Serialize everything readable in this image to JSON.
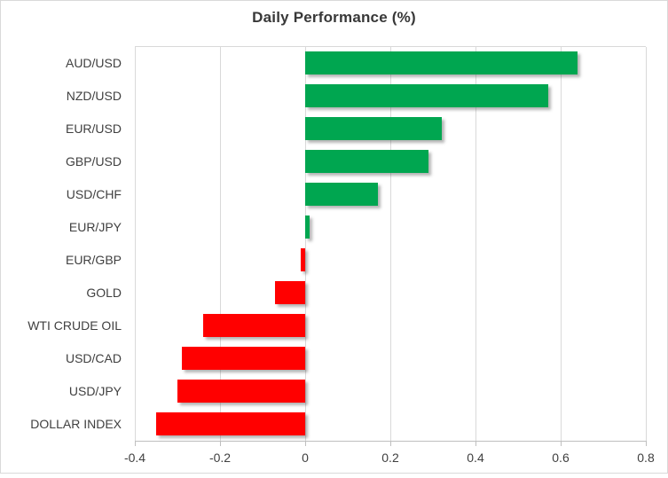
{
  "chart_data": {
    "type": "bar",
    "orientation": "horizontal",
    "title": "Daily Performance (%)",
    "categories": [
      "AUD/USD",
      "NZD/USD",
      "EUR/USD",
      "GBP/USD",
      "USD/CHF",
      "EUR/JPY",
      "EUR/GBP",
      "GOLD",
      "WTI CRUDE OIL",
      "USD/CAD",
      "USD/JPY",
      "DOLLAR INDEX"
    ],
    "values": [
      0.64,
      0.57,
      0.32,
      0.29,
      0.17,
      0.01,
      -0.01,
      -0.07,
      -0.24,
      -0.29,
      -0.3,
      -0.35
    ],
    "xlabel": "",
    "ylabel": "",
    "xlim": [
      -0.4,
      0.8
    ],
    "x_ticks": [
      -0.4,
      -0.2,
      0,
      0.2,
      0.4,
      0.6,
      0.8
    ],
    "x_tick_labels": [
      "-0.4",
      "-0.2",
      "0",
      "0.2",
      "0.4",
      "0.6",
      "0.8"
    ],
    "grid": "vertical-gridlines-on",
    "legend": "none",
    "colors": {
      "positive": "#00A650",
      "negative": "#FF0000",
      "gridline": "#D9D9D9",
      "axis_line": "#BFBFBF",
      "text": "#404040",
      "title_text": "#383838",
      "frame_border": "#D9D9D9"
    }
  }
}
